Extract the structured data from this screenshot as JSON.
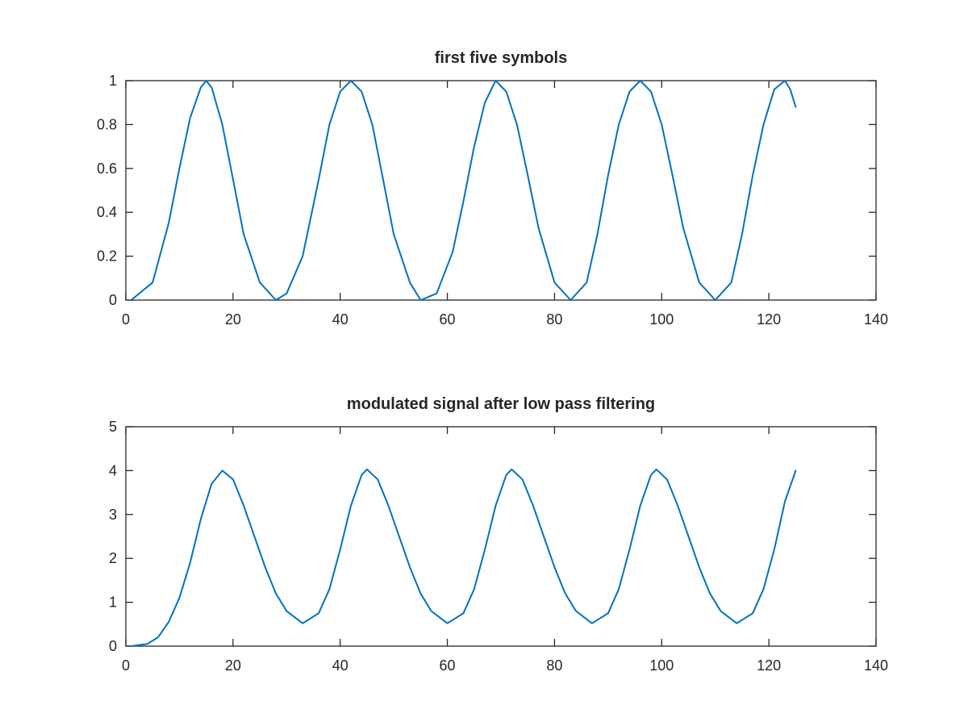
{
  "chart_data": [
    {
      "type": "line",
      "title": "first five symbols",
      "xlabel": "",
      "ylabel": "",
      "xlim": [
        0,
        140
      ],
      "ylim": [
        0,
        1
      ],
      "xticks": [
        0,
        20,
        40,
        60,
        80,
        100,
        120,
        140
      ],
      "yticks": [
        0,
        0.2,
        0.4,
        0.6,
        0.8,
        1
      ],
      "xtick_labels": [
        "0",
        "20",
        "40",
        "60",
        "80",
        "100",
        "120",
        "140"
      ],
      "ytick_labels": [
        "0",
        "0.2",
        "0.4",
        "0.6",
        "0.8",
        "1"
      ],
      "grid": false,
      "series": [
        {
          "color": "#0072BD",
          "x": [
            1,
            5,
            8,
            10,
            12,
            14,
            15,
            16,
            18,
            20,
            22,
            25,
            28,
            30,
            33,
            36,
            38,
            40,
            42,
            44,
            46,
            48,
            50,
            53,
            55,
            58,
            61,
            63,
            65,
            67,
            69,
            71,
            73,
            75,
            77,
            80,
            83,
            86,
            88,
            90,
            92,
            94,
            96,
            98,
            100,
            102,
            104,
            107,
            110,
            113,
            115,
            117,
            119,
            121,
            123,
            124,
            125
          ],
          "y": [
            0.0,
            0.08,
            0.35,
            0.6,
            0.83,
            0.97,
            1.0,
            0.97,
            0.8,
            0.55,
            0.3,
            0.08,
            0.0,
            0.03,
            0.2,
            0.55,
            0.8,
            0.95,
            1.0,
            0.95,
            0.8,
            0.55,
            0.3,
            0.08,
            0.0,
            0.03,
            0.22,
            0.45,
            0.7,
            0.9,
            1.0,
            0.95,
            0.8,
            0.57,
            0.33,
            0.08,
            0.0,
            0.08,
            0.3,
            0.57,
            0.8,
            0.95,
            1.0,
            0.95,
            0.8,
            0.57,
            0.33,
            0.08,
            0.0,
            0.08,
            0.3,
            0.57,
            0.8,
            0.96,
            1.0,
            0.96,
            0.88
          ]
        }
      ]
    },
    {
      "type": "line",
      "title": "modulated signal after low pass filtering",
      "xlabel": "",
      "ylabel": "",
      "xlim": [
        0,
        140
      ],
      "ylim": [
        0,
        5
      ],
      "xticks": [
        0,
        20,
        40,
        60,
        80,
        100,
        120,
        140
      ],
      "yticks": [
        0,
        1,
        2,
        3,
        4,
        5
      ],
      "xtick_labels": [
        "0",
        "20",
        "40",
        "60",
        "80",
        "100",
        "120",
        "140"
      ],
      "ytick_labels": [
        "0",
        "1",
        "2",
        "3",
        "4",
        "5"
      ],
      "grid": false,
      "series": [
        {
          "color": "#0072BD",
          "x": [
            1,
            4,
            6,
            8,
            10,
            12,
            14,
            16,
            18,
            20,
            22,
            24,
            26,
            28,
            30,
            33,
            36,
            38,
            40,
            42,
            44,
            45,
            47,
            49,
            51,
            53,
            55,
            57,
            60,
            63,
            65,
            67,
            69,
            71,
            72,
            74,
            76,
            78,
            80,
            82,
            84,
            87,
            90,
            92,
            94,
            96,
            98,
            99,
            101,
            103,
            105,
            107,
            109,
            111,
            114,
            117,
            119,
            121,
            123,
            125
          ],
          "y": [
            0.0,
            0.05,
            0.2,
            0.55,
            1.1,
            1.9,
            2.9,
            3.7,
            4.0,
            3.8,
            3.2,
            2.5,
            1.8,
            1.2,
            0.8,
            0.52,
            0.75,
            1.3,
            2.2,
            3.2,
            3.9,
            4.03,
            3.8,
            3.2,
            2.5,
            1.8,
            1.2,
            0.8,
            0.52,
            0.75,
            1.3,
            2.2,
            3.2,
            3.9,
            4.03,
            3.8,
            3.2,
            2.5,
            1.8,
            1.2,
            0.8,
            0.52,
            0.75,
            1.3,
            2.2,
            3.2,
            3.9,
            4.03,
            3.8,
            3.2,
            2.5,
            1.8,
            1.2,
            0.8,
            0.52,
            0.75,
            1.3,
            2.2,
            3.3,
            4.0
          ]
        }
      ]
    }
  ]
}
